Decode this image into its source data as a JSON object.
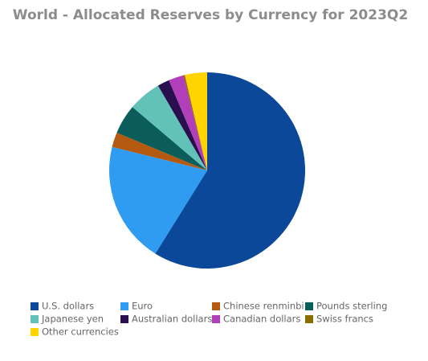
{
  "chart_data": {
    "type": "pie",
    "title": "World - Allocated Reserves by Currency for 2023Q2",
    "categories": [
      "U.S. dollars",
      "Euro",
      "Chinese renminbi",
      "Pounds sterling",
      "Japanese yen",
      "Australian dollars",
      "Canadian dollars",
      "Swiss francs",
      "Other currencies"
    ],
    "values": [
      58.88,
      19.97,
      2.45,
      4.88,
      5.46,
      1.97,
      2.51,
      0.21,
      3.67
    ],
    "colors": [
      "#0b4899",
      "#2f9cf2",
      "#b35a10",
      "#0a5d5b",
      "#63c2b8",
      "#2a0f4f",
      "#b23fba",
      "#8a6d00",
      "#ffd400"
    ]
  }
}
